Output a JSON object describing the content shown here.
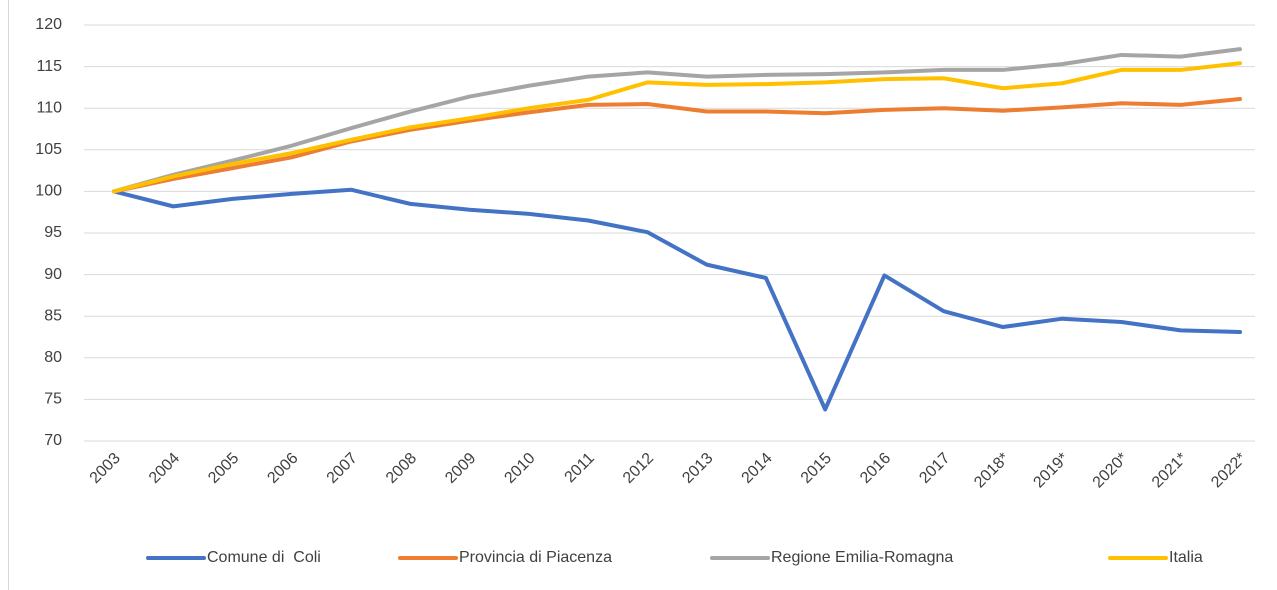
{
  "chart_data": {
    "type": "line",
    "categories": [
      "2003",
      "2004",
      "2005",
      "2006",
      "2007",
      "2008",
      "2009",
      "2010",
      "2011",
      "2012",
      "2013",
      "2014",
      "2015",
      "2016",
      "2017",
      "2018*",
      "2019*",
      "2020*",
      "2021*",
      "2022*"
    ],
    "series": [
      {
        "name": "Comune di  Coli",
        "color": "#4472c4",
        "values": [
          100,
          98.2,
          99.1,
          99.7,
          100.2,
          98.5,
          97.8,
          97.3,
          96.5,
          95.1,
          91.2,
          89.6,
          73.8,
          89.9,
          85.6,
          83.7,
          84.7,
          84.3,
          83.3,
          83.1
        ]
      },
      {
        "name": "Provincia di Piacenza",
        "color": "#ed7d31",
        "values": [
          100,
          101.5,
          102.8,
          104.1,
          106.0,
          107.4,
          108.5,
          109.5,
          110.4,
          110.5,
          109.6,
          109.6,
          109.4,
          109.8,
          110.0,
          109.7,
          110.1,
          110.6,
          110.4,
          111.1
        ]
      },
      {
        "name": "Regione Emilia-Romagna",
        "color": "#a5a5a5",
        "values": [
          100,
          102.0,
          103.7,
          105.5,
          107.6,
          109.6,
          111.4,
          112.7,
          113.8,
          114.3,
          113.8,
          114.0,
          114.1,
          114.3,
          114.6,
          114.6,
          115.3,
          116.4,
          116.2,
          117.1
        ]
      },
      {
        "name": "Italia",
        "color": "#ffc000",
        "values": [
          100,
          101.8,
          103.3,
          104.6,
          106.2,
          107.7,
          108.8,
          110.0,
          111.0,
          113.1,
          112.8,
          112.9,
          113.1,
          113.5,
          113.6,
          112.4,
          113.0,
          114.6,
          114.6,
          115.4
        ]
      }
    ],
    "ylim": [
      70,
      120
    ],
    "yticks": [
      70,
      75,
      80,
      85,
      90,
      95,
      100,
      105,
      110,
      115,
      120
    ],
    "grid": true,
    "legend": "bottom"
  }
}
